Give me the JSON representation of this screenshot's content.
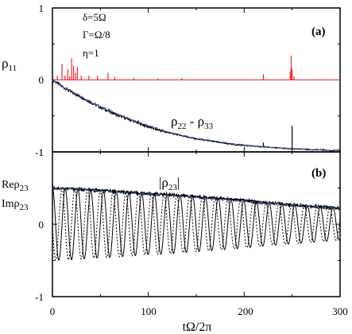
{
  "chart_data": [
    {
      "panel": "(a)",
      "type": "line",
      "xlim": [
        0,
        300
      ],
      "ylim": [
        -1,
        1
      ],
      "yticks": [
        "1",
        "0",
        "-1"
      ],
      "params": [
        "δ=5Ω",
        "Γ=Ω/8",
        "η=1"
      ],
      "ylabel_main": "ρ",
      "ylabel_sub": "11",
      "curve_label_main": "ρ",
      "curve_label_sub1": "22",
      "curve_label_mid": " - ρ",
      "curve_label_sub2": "33",
      "series": [
        {
          "role": "rho11",
          "color": "#ff2020",
          "baseline": 0.0,
          "spikes": [
            [
              5,
              0.06
            ],
            [
              10,
              0.22
            ],
            [
              13,
              0.06
            ],
            [
              16,
              0.15
            ],
            [
              18,
              0.05
            ],
            [
              20,
              0.3
            ],
            [
              22,
              0.2
            ],
            [
              24,
              0.1
            ],
            [
              26,
              0.18
            ],
            [
              30,
              0.06
            ],
            [
              38,
              0.06
            ],
            [
              47,
              0.06
            ],
            [
              58,
              0.1
            ],
            [
              65,
              0.04
            ],
            [
              85,
              0.03
            ],
            [
              110,
              0.02
            ],
            [
              135,
              0.03
            ],
            [
              220,
              0.08
            ],
            [
              248,
              0.12
            ],
            [
              249,
              0.34
            ],
            [
              250,
              0.15
            ],
            [
              252,
              0.05
            ]
          ]
        },
        {
          "role": "rho22_minus_rho33",
          "color": "#000000",
          "x": [
            0,
            10,
            20,
            30,
            40,
            50,
            60,
            70,
            80,
            90,
            100,
            110,
            120,
            130,
            140,
            150,
            160,
            170,
            180,
            190,
            200,
            210,
            220,
            230,
            240,
            250,
            260,
            270,
            280,
            290,
            300
          ],
          "y": [
            0.0,
            -0.09,
            -0.17,
            -0.24,
            -0.31,
            -0.38,
            -0.44,
            -0.5,
            -0.55,
            -0.6,
            -0.65,
            -0.69,
            -0.73,
            -0.76,
            -0.79,
            -0.82,
            -0.84,
            -0.86,
            -0.88,
            -0.9,
            -0.91,
            -0.92,
            -0.93,
            -0.94,
            -0.95,
            -0.96,
            -0.96,
            -0.97,
            -0.97,
            -0.98,
            -0.98
          ],
          "spikes": [
            [
              250,
              -0.64
            ],
            [
              220,
              -0.87
            ]
          ]
        },
        {
          "role": "fit",
          "color": "#3a5fd0",
          "style": "dashed",
          "x": [
            0,
            10,
            20,
            30,
            40,
            50,
            60,
            70,
            80,
            90,
            100,
            110,
            120,
            130,
            140,
            150,
            160,
            170,
            180,
            190,
            200,
            210,
            220,
            230,
            240,
            250,
            260,
            270,
            280,
            290,
            300
          ],
          "y": [
            0.0,
            -0.08,
            -0.16,
            -0.23,
            -0.3,
            -0.37,
            -0.43,
            -0.49,
            -0.54,
            -0.59,
            -0.64,
            -0.68,
            -0.72,
            -0.75,
            -0.78,
            -0.81,
            -0.83,
            -0.85,
            -0.87,
            -0.89,
            -0.9,
            -0.92,
            -0.93,
            -0.94,
            -0.95,
            -0.95,
            -0.96,
            -0.97,
            -0.97,
            -0.98,
            -0.98
          ]
        }
      ]
    },
    {
      "panel": "(b)",
      "type": "line",
      "xlim": [
        0,
        300
      ],
      "ylim": [
        -1,
        1
      ],
      "yticks": [
        "1",
        "0",
        "-1"
      ],
      "xticks": [
        "0",
        "100",
        "200",
        "300"
      ],
      "xlabel": "tΩ/2π",
      "re_label_main": "Reρ",
      "re_label_sub": "23",
      "im_label_main": "Imρ",
      "im_label_sub": "23",
      "curve_label_main": "|ρ",
      "curve_label_sub": "23",
      "curve_label_end": "|",
      "series": [
        {
          "role": "abs_rho23",
          "color": "#000000",
          "x": [
            0,
            20,
            40,
            60,
            80,
            100,
            120,
            140,
            160,
            180,
            200,
            220,
            240,
            260,
            280,
            300
          ],
          "y": [
            0.5,
            0.49,
            0.47,
            0.46,
            0.44,
            0.42,
            0.41,
            0.39,
            0.37,
            0.35,
            0.33,
            0.3,
            0.28,
            0.26,
            0.24,
            0.22
          ]
        },
        {
          "role": "abs_fit",
          "color": "#3a5fd0",
          "style": "dashed",
          "x": [
            0,
            20,
            40,
            60,
            80,
            100,
            120,
            140,
            160,
            180,
            200,
            220,
            240,
            260,
            280,
            300
          ],
          "y": [
            0.5,
            0.49,
            0.47,
            0.45,
            0.43,
            0.42,
            0.4,
            0.38,
            0.36,
            0.34,
            0.32,
            0.3,
            0.28,
            0.26,
            0.24,
            0.22
          ]
        },
        {
          "role": "re_rho23",
          "color": "#000000",
          "style": "solid",
          "period": 13.3,
          "phase": 0
        },
        {
          "role": "im_rho23",
          "color": "#000000",
          "style": "dotted",
          "period": 13.3,
          "phase": 0.25
        }
      ]
    }
  ]
}
